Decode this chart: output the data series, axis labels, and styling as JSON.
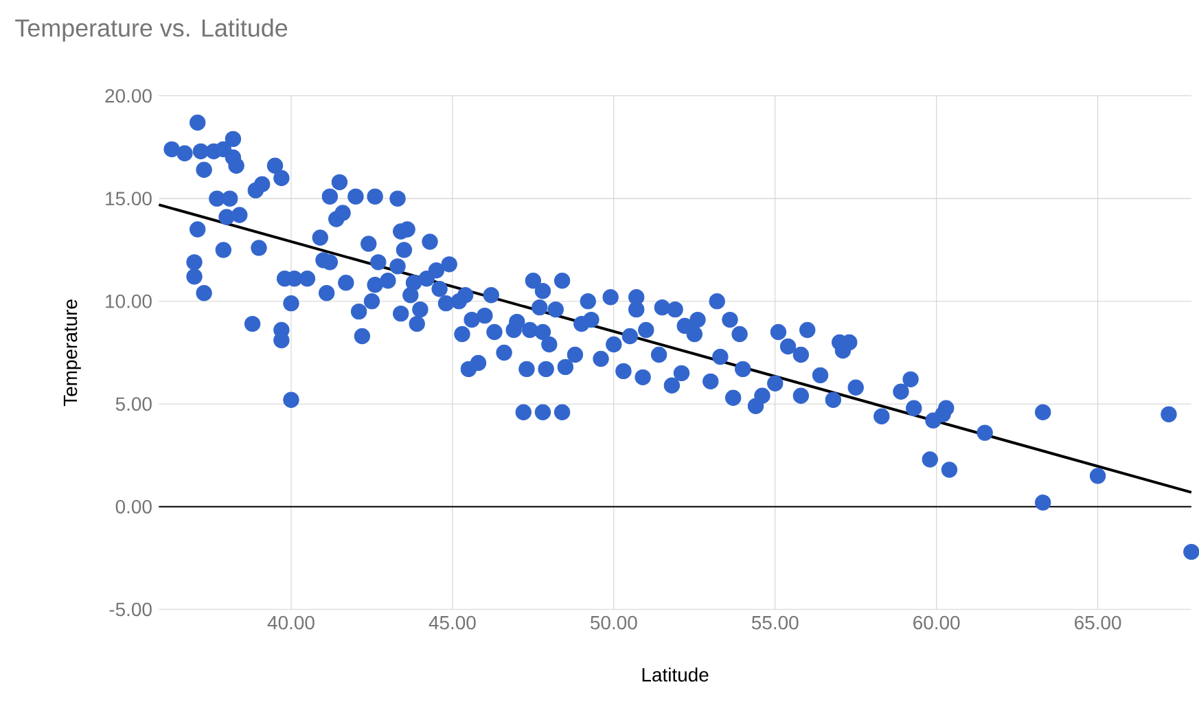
{
  "chart_data": {
    "type": "scatter",
    "title": "Temperature vs. Latitude",
    "xlabel": "Latitude",
    "ylabel": "Temperature",
    "xlim": [
      35.9,
      67.9
    ],
    "ylim": [
      -5,
      20
    ],
    "xticks": [
      {
        "value": 40,
        "label": "40.00"
      },
      {
        "value": 45,
        "label": "45.00"
      },
      {
        "value": 50,
        "label": "50.00"
      },
      {
        "value": 55,
        "label": "55.00"
      },
      {
        "value": 60,
        "label": "60.00"
      },
      {
        "value": 65,
        "label": "65.00"
      }
    ],
    "yticks": [
      {
        "value": -5,
        "label": "-5.00"
      },
      {
        "value": 0,
        "label": "0.00"
      },
      {
        "value": 5,
        "label": "5.00"
      },
      {
        "value": 10,
        "label": "10.00"
      },
      {
        "value": 15,
        "label": "15.00"
      },
      {
        "value": 20,
        "label": "20.00"
      }
    ],
    "grid": true,
    "marker": "circle",
    "series": [
      {
        "color": "#3366cc",
        "x": [
          36.3,
          36.7,
          37.1,
          37.2,
          37.3,
          37.6,
          37.9,
          38.2,
          38.3,
          38.2,
          37.1,
          37.0,
          37.0,
          37.3,
          37.7,
          38.1,
          38.0,
          38.4,
          37.9,
          38.8,
          38.9,
          39.1,
          39.5,
          39.7,
          39.0,
          39.8,
          39.7,
          39.7,
          40.0,
          40.0,
          40.1,
          40.5,
          40.9,
          41.0,
          41.1,
          41.2,
          41.5,
          41.4,
          41.6,
          41.2,
          41.7,
          42.0,
          42.1,
          42.2,
          42.4,
          42.6,
          42.7,
          42.6,
          42.5,
          43.0,
          43.3,
          43.3,
          43.4,
          43.6,
          43.5,
          43.4,
          43.8,
          43.7,
          43.9,
          44.0,
          44.2,
          44.3,
          44.5,
          44.6,
          44.9,
          44.8,
          45.2,
          45.3,
          45.4,
          45.6,
          45.5,
          45.8,
          46.0,
          46.2,
          46.3,
          46.6,
          46.9,
          47.0,
          47.2,
          47.3,
          47.4,
          47.5,
          47.8,
          47.7,
          47.8,
          47.9,
          47.8,
          48.0,
          48.2,
          48.4,
          48.4,
          48.5,
          48.8,
          49.0,
          49.2,
          49.3,
          49.6,
          49.9,
          50.0,
          50.3,
          50.5,
          50.7,
          50.7,
          50.9,
          51.0,
          51.4,
          51.5,
          51.8,
          51.9,
          52.1,
          52.2,
          52.5,
          52.6,
          53.0,
          53.2,
          53.3,
          53.6,
          53.7,
          53.9,
          54.0,
          54.4,
          54.6,
          55.0,
          55.1,
          55.4,
          55.8,
          55.8,
          56.0,
          56.4,
          56.8,
          57.0,
          57.3,
          57.1,
          57.5,
          58.3,
          58.9,
          59.2,
          59.3,
          59.9,
          59.8,
          60.2,
          60.3,
          60.4,
          61.5,
          63.3,
          63.3,
          65.0,
          67.2,
          67.9
        ],
        "values": [
          17.4,
          17.2,
          18.7,
          17.3,
          16.4,
          17.3,
          17.4,
          17.9,
          16.6,
          17.0,
          13.5,
          11.9,
          11.2,
          10.4,
          15.0,
          15.0,
          14.1,
          14.2,
          12.5,
          8.9,
          15.4,
          15.7,
          16.6,
          16.0,
          12.6,
          11.1,
          8.6,
          8.1,
          5.2,
          9.9,
          11.1,
          11.1,
          13.1,
          12.0,
          10.4,
          15.1,
          15.8,
          14.0,
          14.3,
          11.9,
          10.9,
          15.1,
          9.5,
          8.3,
          12.8,
          15.1,
          11.9,
          10.8,
          10.0,
          11.0,
          11.7,
          15.0,
          13.4,
          13.5,
          12.5,
          9.4,
          10.9,
          10.3,
          8.9,
          9.6,
          11.1,
          12.9,
          11.5,
          10.6,
          11.8,
          9.9,
          10.0,
          8.4,
          10.3,
          9.1,
          6.7,
          7.0,
          9.3,
          10.3,
          8.5,
          7.5,
          8.6,
          9.0,
          4.6,
          6.7,
          8.6,
          11.0,
          10.5,
          9.7,
          8.5,
          6.7,
          4.6,
          7.9,
          9.6,
          11.0,
          4.6,
          6.8,
          7.4,
          8.9,
          10.0,
          9.1,
          7.2,
          10.2,
          7.9,
          6.6,
          8.3,
          10.2,
          9.6,
          6.3,
          8.6,
          7.4,
          9.7,
          5.9,
          9.6,
          6.5,
          8.8,
          8.4,
          9.1,
          6.1,
          10.0,
          7.3,
          9.1,
          5.3,
          8.4,
          6.7,
          4.9,
          5.4,
          6.0,
          8.5,
          7.8,
          5.4,
          7.4,
          8.6,
          6.4,
          5.2,
          8.0,
          8.0,
          7.6,
          5.8,
          4.4,
          5.6,
          6.2,
          4.8,
          4.2,
          2.3,
          4.5,
          4.8,
          1.8,
          3.6,
          4.6,
          0.2,
          1.5,
          4.5,
          -2.2
        ]
      },
      {
        "type": "line",
        "color": "#000000",
        "marker": "none",
        "x": [
          35.9,
          67.9
        ],
        "values": [
          14.7,
          0.7
        ]
      }
    ]
  }
}
